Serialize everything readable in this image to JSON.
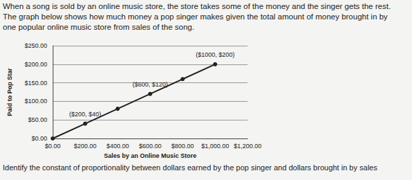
{
  "text": {
    "intro": [
      "When a song is sold by an online music store, the store takes some of the money and the singer gets the rest.",
      "The graph below shows how much money a pop singer makes given the total amount of money brought in by",
      "one popular online music store from sales of the song."
    ],
    "question": "Identify the constant of proportionality between dollars earned by the pop singer and dollars brought in by sales"
  },
  "chart_data": {
    "type": "line",
    "x_label": "Sales by an Online Music Store",
    "y_label": "Paid to Pop Star",
    "x": [
      0,
      200,
      400,
      600,
      800,
      1000
    ],
    "values": [
      0,
      40,
      80,
      120,
      160,
      200
    ],
    "color": "#222222",
    "marker": "circle",
    "grid": true,
    "annotations": [
      {
        "x": 200,
        "y": 40,
        "text": "($200, $40)"
      },
      {
        "x": 600,
        "y": 120,
        "text": "($600, $120)"
      },
      {
        "x": 1000,
        "y": 200,
        "text": "($1000, $200)"
      }
    ],
    "xlim": [
      0,
      1200
    ],
    "xticks": [
      {
        "value": 0,
        "label": "$0.00"
      },
      {
        "value": 200,
        "label": "$200.00"
      },
      {
        "value": 400,
        "label": "$400.00"
      },
      {
        "value": 600,
        "label": "$600.00"
      },
      {
        "value": 800,
        "label": "$800.00"
      },
      {
        "value": 1000,
        "label": "$1,000.00"
      },
      {
        "value": 1200,
        "label": "$1,200.00"
      }
    ],
    "ylim": [
      0,
      250
    ],
    "yticks": [
      {
        "value": 0,
        "label": "$0.00"
      },
      {
        "value": 50,
        "label": "$50.00"
      },
      {
        "value": 100,
        "label": "$100.00"
      },
      {
        "value": 150,
        "label": "$150.00"
      },
      {
        "value": 200,
        "label": "$200.00"
      },
      {
        "value": 250,
        "label": "$250.00"
      }
    ]
  }
}
